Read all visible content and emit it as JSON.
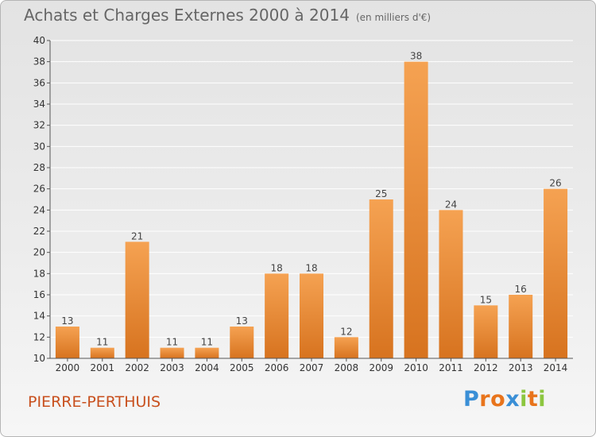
{
  "header": {
    "title": "Achats et Charges Externes 2000 à 2014",
    "unit": "(en milliers d'€)"
  },
  "footer": {
    "place": "PIERRE-PERTHUIS",
    "logo_letters": [
      "P",
      "r",
      "o",
      "x",
      "i",
      "t",
      "i"
    ],
    "logo_colors": [
      "#3a8fd6",
      "#e8741c",
      "#e8741c",
      "#3a8fd6",
      "#8cc63f",
      "#e8741c",
      "#8cc63f"
    ]
  },
  "colors": {
    "bar_light": "#f5a252",
    "bar_dark": "#d7731f",
    "axis": "#555555",
    "grid": "#ffffff",
    "title": "#666666",
    "place": "#c8501e"
  },
  "chart_data": {
    "type": "bar",
    "title": "Achats et Charges Externes 2000 à 2014",
    "subtitle": "(en milliers d'€)",
    "xlabel": "",
    "ylabel": "",
    "categories": [
      "2000",
      "2001",
      "2002",
      "2003",
      "2004",
      "2005",
      "2006",
      "2007",
      "2008",
      "2009",
      "2010",
      "2011",
      "2012",
      "2013",
      "2014"
    ],
    "values": [
      13,
      11,
      21,
      11,
      11,
      13,
      18,
      18,
      12,
      25,
      38,
      24,
      15,
      16,
      26
    ],
    "ylim": [
      10,
      40
    ],
    "yticks": [
      10,
      12,
      14,
      16,
      18,
      20,
      22,
      24,
      26,
      28,
      30,
      32,
      34,
      36,
      38,
      40
    ],
    "grid": true
  }
}
